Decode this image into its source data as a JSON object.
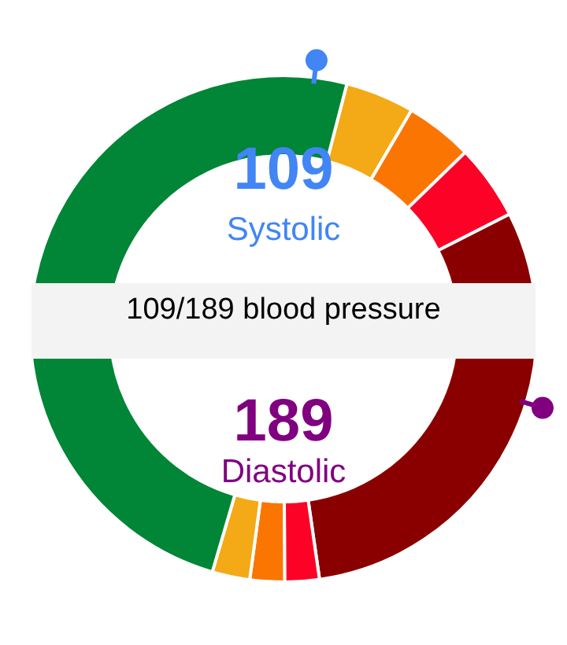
{
  "chart_data": {
    "type": "donut",
    "title": "109/189 blood pressure",
    "annotations": [
      "109",
      "Systolic",
      "189",
      "Diastolic"
    ],
    "categories": [
      null,
      null,
      null,
      null,
      null,
      null,
      null,
      null
    ],
    "values": [
      4.4,
      4.3,
      4.8,
      30.2,
      2.2,
      2.2,
      2.4,
      49.5
    ],
    "colors": [
      "#f4a917",
      "#fb7503",
      "#fc0227",
      "#8a0000",
      "#fc0227",
      "#fb7503",
      "#f4a917",
      "#018536"
    ]
  }
}
